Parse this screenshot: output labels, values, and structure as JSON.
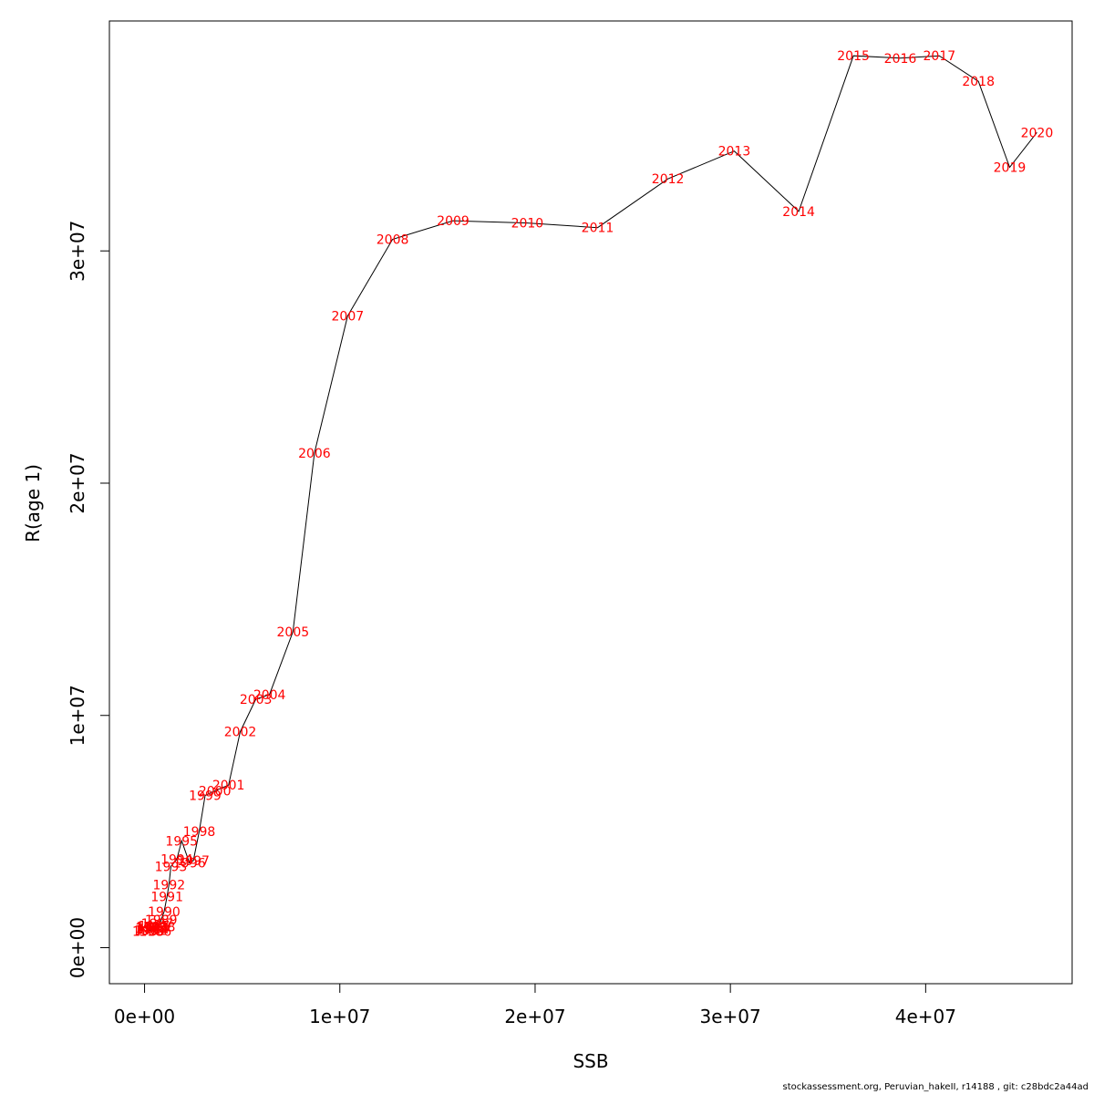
{
  "chart_data": {
    "type": "line",
    "xlabel": "SSB",
    "ylabel": "R(age 1)",
    "xlim": [
      -1800000,
      47500000
    ],
    "ylim": [
      -1550000,
      39900000
    ],
    "x_ticks": [
      0,
      10000000,
      20000000,
      30000000,
      40000000
    ],
    "x_tick_labels": [
      "0e+00",
      "1e+07",
      "2e+07",
      "3e+07",
      "4e+07"
    ],
    "y_ticks": [
      0,
      10000000,
      20000000,
      30000000
    ],
    "y_tick_labels": [
      "0e+00",
      "1e+07",
      "2e+07",
      "3e+07"
    ],
    "line_color": "#000000",
    "label_color": "#ff0000",
    "points": [
      {
        "label": "1980",
        "x": 200000,
        "y": 700000
      },
      {
        "label": "1981",
        "x": 300000,
        "y": 750000
      },
      {
        "label": "1982",
        "x": 350000,
        "y": 850000
      },
      {
        "label": "1983",
        "x": 400000,
        "y": 900000
      },
      {
        "label": "1984",
        "x": 450000,
        "y": 800000
      },
      {
        "label": "1985",
        "x": 500000,
        "y": 950000
      },
      {
        "label": "1986",
        "x": 550000,
        "y": 700000
      },
      {
        "label": "1987",
        "x": 650000,
        "y": 1050000
      },
      {
        "label": "1988",
        "x": 750000,
        "y": 900000
      },
      {
        "label": "1989",
        "x": 850000,
        "y": 1200000
      },
      {
        "label": "1990",
        "x": 1000000,
        "y": 1550000
      },
      {
        "label": "1991",
        "x": 1150000,
        "y": 2200000
      },
      {
        "label": "1992",
        "x": 1250000,
        "y": 2700000
      },
      {
        "label": "1993",
        "x": 1350000,
        "y": 3500000
      },
      {
        "label": "1994",
        "x": 1650000,
        "y": 3800000
      },
      {
        "label": "1995",
        "x": 1900000,
        "y": 4600000
      },
      {
        "label": "1996",
        "x": 2300000,
        "y": 3650000
      },
      {
        "label": "1997",
        "x": 2500000,
        "y": 3750000
      },
      {
        "label": "1998",
        "x": 2800000,
        "y": 5000000
      },
      {
        "label": "1999",
        "x": 3100000,
        "y": 6550000
      },
      {
        "label": "2000",
        "x": 3600000,
        "y": 6750000
      },
      {
        "label": "2001",
        "x": 4300000,
        "y": 7000000
      },
      {
        "label": "2002",
        "x": 4900000,
        "y": 9300000
      },
      {
        "label": "2003",
        "x": 5700000,
        "y": 10700000
      },
      {
        "label": "2004",
        "x": 6400000,
        "y": 10900000
      },
      {
        "label": "2005",
        "x": 7600000,
        "y": 13600000
      },
      {
        "label": "2006",
        "x": 8700000,
        "y": 21300000
      },
      {
        "label": "2007",
        "x": 10400000,
        "y": 27200000
      },
      {
        "label": "2008",
        "x": 12700000,
        "y": 30500000
      },
      {
        "label": "2009",
        "x": 15800000,
        "y": 31300000
      },
      {
        "label": "2010",
        "x": 19600000,
        "y": 31200000
      },
      {
        "label": "2011",
        "x": 23200000,
        "y": 31000000
      },
      {
        "label": "2012",
        "x": 26800000,
        "y": 33100000
      },
      {
        "label": "2013",
        "x": 30200000,
        "y": 34300000
      },
      {
        "label": "2014",
        "x": 33500000,
        "y": 31700000
      },
      {
        "label": "2015",
        "x": 36300000,
        "y": 38400000
      },
      {
        "label": "2016",
        "x": 38700000,
        "y": 38300000
      },
      {
        "label": "2017",
        "x": 40700000,
        "y": 38400000
      },
      {
        "label": "2018",
        "x": 42700000,
        "y": 37300000
      },
      {
        "label": "2019",
        "x": 44300000,
        "y": 33600000
      },
      {
        "label": "2020",
        "x": 45700000,
        "y": 35100000
      }
    ]
  },
  "footer": {
    "credit": "stockassessment.org, Peruvian_hakeII, r14188 , git: c28bdc2a44ad"
  }
}
